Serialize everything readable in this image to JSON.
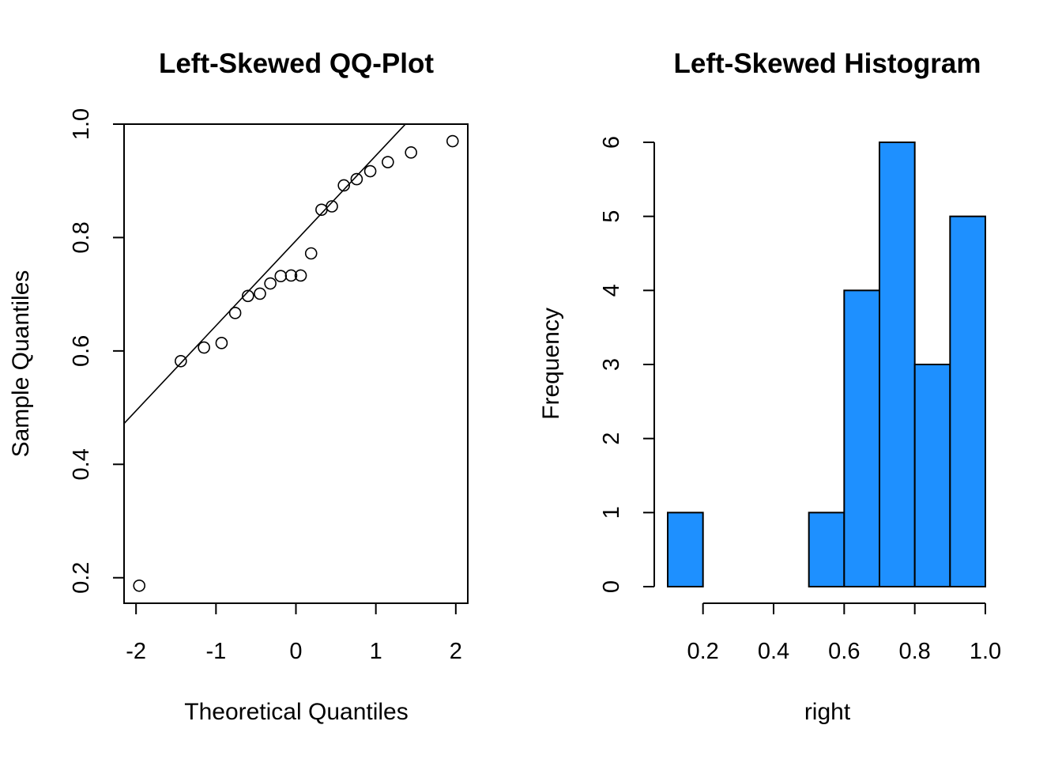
{
  "chart_data": [
    {
      "type": "scatter",
      "title": "Left-Skewed QQ-Plot",
      "xlabel": "Theoretical Quantiles",
      "ylabel": "Sample Quantiles",
      "xlim": [
        -2.15,
        2.15
      ],
      "ylim": [
        0.155,
        1.0
      ],
      "xticks": [
        -2,
        -1,
        0,
        1,
        2
      ],
      "xtick_labels": [
        "-2",
        "-1",
        "0",
        "1",
        "2"
      ],
      "yticks": [
        0.2,
        0.4,
        0.6,
        0.8,
        1.0
      ],
      "ytick_labels": [
        "0.2",
        "0.4",
        "0.6",
        "0.8",
        "1.0"
      ],
      "grid": false,
      "marker": "open-circle",
      "points": {
        "x": [
          -1.96,
          -1.44,
          -1.15,
          -0.93,
          -0.76,
          -0.6,
          -0.45,
          -0.32,
          -0.19,
          -0.06,
          0.06,
          0.19,
          0.32,
          0.45,
          0.6,
          0.76,
          0.93,
          1.15,
          1.44,
          1.96
        ],
        "y": [
          0.186,
          0.582,
          0.606,
          0.614,
          0.667,
          0.697,
          0.701,
          0.719,
          0.732,
          0.733,
          0.733,
          0.772,
          0.849,
          0.855,
          0.892,
          0.903,
          0.917,
          0.933,
          0.95,
          0.97
        ]
      },
      "reference_line": {
        "x": [
          -2.15,
          1.37
        ],
        "y": [
          0.472,
          1.0
        ]
      }
    },
    {
      "type": "bar",
      "subtype": "histogram",
      "title": "Left-Skewed Histogram",
      "xlabel": "right",
      "ylabel": "Frequency",
      "bin_edges": [
        0.1,
        0.2,
        0.3,
        0.4,
        0.5,
        0.6,
        0.7,
        0.8,
        0.9,
        1.0
      ],
      "values": [
        1,
        0,
        0,
        0,
        1,
        4,
        6,
        3,
        5
      ],
      "xlim": [
        0.1,
        1.0
      ],
      "ylim": [
        0,
        6
      ],
      "xticks": [
        0.2,
        0.4,
        0.6,
        0.8,
        1.0
      ],
      "xtick_labels": [
        "0.2",
        "0.4",
        "0.6",
        "0.8",
        "1.0"
      ],
      "yticks": [
        0,
        1,
        2,
        3,
        4,
        5,
        6
      ],
      "ytick_labels": [
        "0",
        "1",
        "2",
        "3",
        "4",
        "5",
        "6"
      ],
      "bar_color": "#1E90FF",
      "grid": false
    }
  ]
}
